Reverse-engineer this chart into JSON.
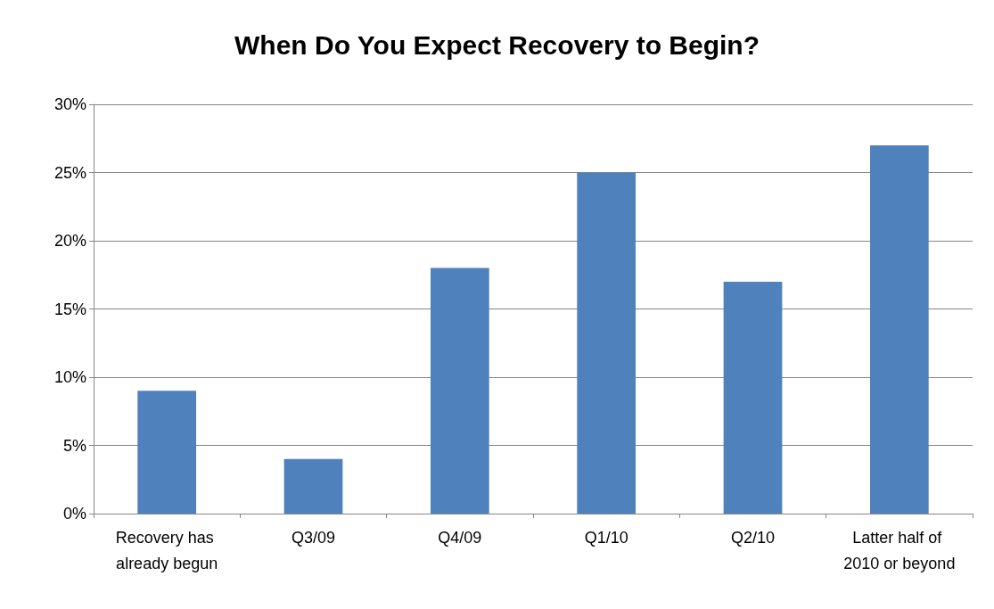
{
  "chart_data": {
    "type": "bar",
    "title": "When Do You Expect Recovery to Begin?",
    "categories": [
      "Recovery has already begun",
      "Q3/09",
      "Q4/09",
      "Q1/10",
      "Q2/10",
      "Latter half of 2010 or beyond"
    ],
    "values": [
      9,
      4,
      18,
      25,
      17,
      27
    ],
    "color": "#4f81bd",
    "ylim": [
      0,
      30
    ],
    "yticks": [
      {
        "value": 0,
        "label": "0%"
      },
      {
        "value": 5,
        "label": "5%"
      },
      {
        "value": 10,
        "label": "10%"
      },
      {
        "value": 15,
        "label": "15%"
      },
      {
        "value": 20,
        "label": "20%"
      },
      {
        "value": 25,
        "label": "25%"
      },
      {
        "value": 30,
        "label": "30%"
      }
    ],
    "grid": "y"
  }
}
